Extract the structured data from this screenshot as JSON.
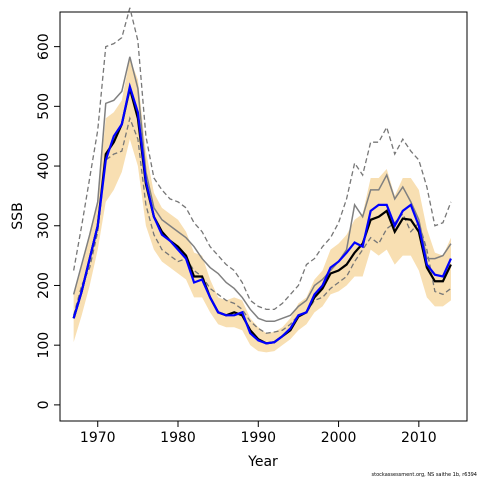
{
  "chart_data": {
    "type": "line",
    "xlabel": "Year",
    "ylabel": "SSB",
    "footnote": "stockassessment.org, NS saithe 1b, r6394",
    "x": [
      1967,
      1968,
      1969,
      1970,
      1971,
      1972,
      1973,
      1974,
      1975,
      1976,
      1977,
      1978,
      1979,
      1980,
      1981,
      1982,
      1983,
      1984,
      1985,
      1986,
      1987,
      1988,
      1989,
      1990,
      1991,
      1992,
      1993,
      1994,
      1995,
      1996,
      1997,
      1998,
      1999,
      2000,
      2001,
      2002,
      2003,
      2004,
      2005,
      2006,
      2007,
      2008,
      2009,
      2010,
      2011,
      2012,
      2013,
      2014
    ],
    "band": {
      "color": "#f8dfb2",
      "lower": [
        105,
        150,
        200,
        260,
        340,
        360,
        390,
        445,
        400,
        300,
        260,
        240,
        230,
        220,
        210,
        180,
        180,
        155,
        135,
        130,
        130,
        125,
        100,
        90,
        88,
        90,
        100,
        110,
        125,
        135,
        155,
        165,
        185,
        190,
        200,
        215,
        215,
        260,
        250,
        260,
        235,
        250,
        250,
        225,
        180,
        165,
        165,
        175
      ],
      "upper": [
        185,
        235,
        290,
        345,
        480,
        490,
        510,
        580,
        545,
        425,
        355,
        330,
        320,
        310,
        290,
        255,
        250,
        210,
        180,
        175,
        180,
        175,
        145,
        130,
        120,
        122,
        130,
        145,
        170,
        180,
        210,
        225,
        260,
        270,
        285,
        310,
        320,
        380,
        380,
        395,
        350,
        380,
        380,
        360,
        295,
        255,
        250,
        280
      ]
    },
    "series": [
      {
        "color": "#777777",
        "dash": true,
        "width": 1.3,
        "values": [
          225,
          300,
          380,
          460,
          600,
          605,
          615,
          665,
          610,
          450,
          380,
          360,
          345,
          340,
          330,
          305,
          290,
          265,
          250,
          235,
          225,
          205,
          175,
          165,
          160,
          160,
          170,
          185,
          200,
          235,
          245,
          265,
          280,
          305,
          345,
          405,
          385,
          440,
          440,
          465,
          420,
          445,
          425,
          410,
          365,
          300,
          305,
          340
        ]
      },
      {
        "color": "#777777",
        "dash": true,
        "width": 1.3,
        "values": [
          150,
          200,
          230,
          290,
          410,
          420,
          425,
          480,
          445,
          335,
          285,
          260,
          250,
          240,
          245,
          225,
          215,
          195,
          185,
          175,
          170,
          160,
          140,
          128,
          120,
          122,
          125,
          135,
          150,
          155,
          175,
          180,
          195,
          205,
          215,
          240,
          260,
          280,
          270,
          295,
          305,
          320,
          290,
          305,
          260,
          190,
          185,
          195
        ]
      },
      {
        "color": "#808080",
        "dash": false,
        "width": 1.5,
        "values": [
          185,
          235,
          285,
          340,
          505,
          510,
          525,
          583,
          530,
          390,
          330,
          310,
          300,
          290,
          280,
          265,
          245,
          230,
          220,
          205,
          195,
          180,
          160,
          145,
          140,
          140,
          145,
          150,
          165,
          175,
          200,
          210,
          225,
          240,
          260,
          335,
          315,
          360,
          360,
          385,
          345,
          365,
          340,
          310,
          245,
          245,
          250,
          270
        ]
      },
      {
        "color": "#000000",
        "dash": false,
        "width": 2.2,
        "values": [
          145,
          190,
          245,
          300,
          420,
          440,
          470,
          530,
          480,
          370,
          315,
          290,
          275,
          265,
          250,
          215,
          215,
          180,
          155,
          150,
          155,
          150,
          125,
          110,
          103,
          105,
          115,
          125,
          148,
          155,
          180,
          195,
          220,
          225,
          235,
          255,
          270,
          310,
          315,
          325,
          290,
          312,
          310,
          290,
          230,
          207,
          207,
          235
        ]
      },
      {
        "color": "#0000ff",
        "dash": false,
        "width": 2.2,
        "values": [
          145,
          190,
          245,
          300,
          410,
          450,
          470,
          533,
          490,
          375,
          315,
          285,
          275,
          260,
          245,
          205,
          210,
          180,
          155,
          150,
          150,
          155,
          120,
          108,
          103,
          105,
          115,
          128,
          150,
          155,
          185,
          200,
          230,
          240,
          255,
          272,
          265,
          325,
          335,
          335,
          300,
          325,
          335,
          300,
          235,
          218,
          215,
          245
        ]
      }
    ],
    "xlim": [
      1965.3,
      2016.0
    ],
    "ylim": [
      -27,
      658
    ],
    "xticks": [
      1970,
      1980,
      1990,
      2000,
      2010
    ],
    "yticks": [
      0,
      100,
      200,
      300,
      400,
      500,
      600
    ]
  }
}
